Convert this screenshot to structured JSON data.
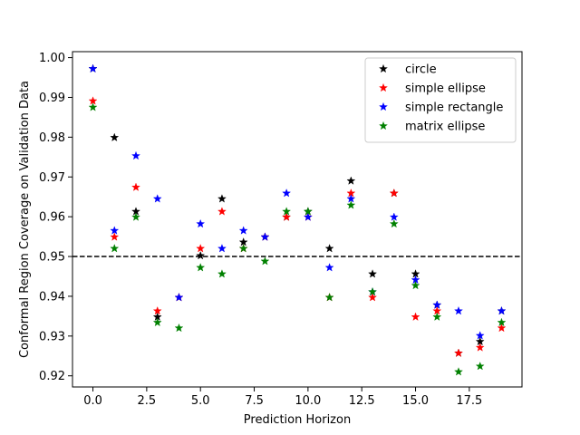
{
  "chart_data": {
    "type": "scatter",
    "xlabel": "Prediction Horizon",
    "ylabel": "Conformal Region Coverage on Validation Data",
    "xlim": [
      -0.95,
      19.95
    ],
    "ylim": [
      0.9172,
      1.0015
    ],
    "xticks": [
      0.0,
      2.5,
      5.0,
      7.5,
      10.0,
      12.5,
      15.0,
      17.5
    ],
    "xtick_labels": [
      "0.0",
      "2.5",
      "5.0",
      "7.5",
      "10.0",
      "12.5",
      "15.0",
      "17.5"
    ],
    "yticks": [
      0.92,
      0.93,
      0.94,
      0.95,
      0.96,
      0.97,
      0.98,
      0.99,
      1.0
    ],
    "ytick_labels": [
      "0.92",
      "0.93",
      "0.94",
      "0.95",
      "0.96",
      "0.97",
      "0.98",
      "0.99",
      "1.00"
    ],
    "reference_line": {
      "y": 0.95,
      "style": "dashed",
      "color": "#000000"
    },
    "legend_position": "top-right",
    "grid": false,
    "x": [
      0,
      1,
      2,
      3,
      4,
      5,
      6,
      7,
      8,
      9,
      10,
      11,
      12,
      13,
      14,
      15,
      16,
      17,
      18,
      19
    ],
    "series": [
      {
        "name": "circle",
        "color": "#000000",
        "values": [
          0.9972,
          0.9799,
          0.9613,
          0.9348,
          0.9397,
          0.9502,
          0.9645,
          0.9536,
          0.9549,
          0.9599,
          0.9613,
          0.952,
          0.969,
          0.9456,
          0.9659,
          0.9456,
          0.9378,
          0.9257,
          0.9286,
          0.9363
        ]
      },
      {
        "name": "simple ellipse",
        "color": "#ff0000",
        "values": [
          0.9891,
          0.9549,
          0.9674,
          0.9363,
          0.9397,
          0.952,
          0.9613,
          0.952,
          0.9549,
          0.9599,
          0.9599,
          0.9397,
          0.9659,
          0.9397,
          0.9659,
          0.9348,
          0.9363,
          0.9257,
          0.9271,
          0.932
        ]
      },
      {
        "name": "simple rectangle",
        "color": "#0000ff",
        "values": [
          0.9972,
          0.9565,
          0.9753,
          0.9645,
          0.9397,
          0.9582,
          0.952,
          0.9565,
          0.9549,
          0.9659,
          0.9599,
          0.9472,
          0.9645,
          0.9411,
          0.9599,
          0.9441,
          0.9378,
          0.9363,
          0.9301,
          0.9363
        ]
      },
      {
        "name": "matrix ellipse",
        "color": "#008000",
        "values": [
          0.9875,
          0.952,
          0.9599,
          0.9334,
          0.932,
          0.9472,
          0.9456,
          0.952,
          0.9488,
          0.9613,
          0.9613,
          0.9397,
          0.9629,
          0.9411,
          0.9582,
          0.9427,
          0.9348,
          0.921,
          0.9224,
          0.9334
        ]
      }
    ]
  }
}
